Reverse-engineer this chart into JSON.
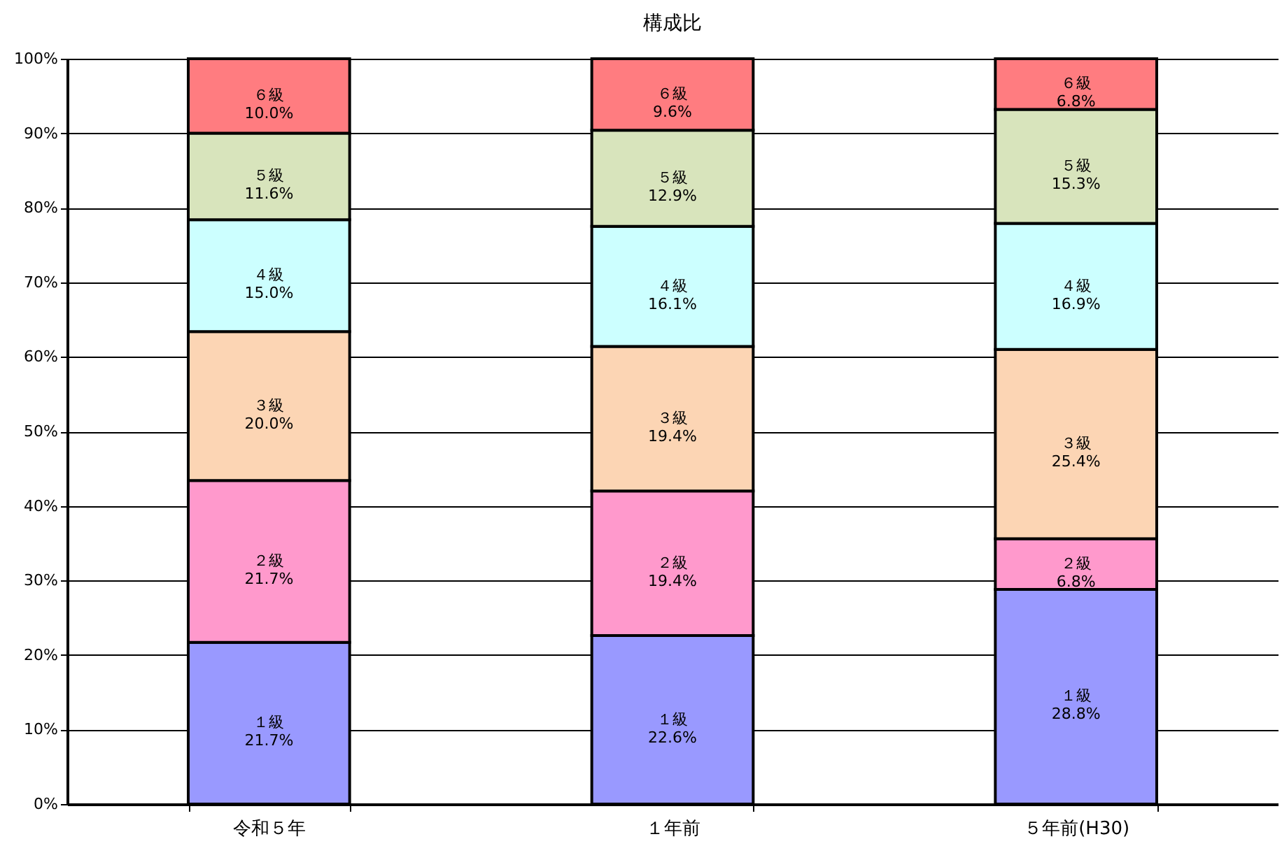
{
  "chart_data": {
    "type": "bar",
    "title": "構成比",
    "stacked": true,
    "categories": [
      "令和５年",
      "１年前",
      "５年前(H30)"
    ],
    "series": [
      {
        "name": "１級",
        "color": "#9999ff",
        "values": [
          21.7,
          22.6,
          28.8
        ],
        "value_labels": [
          "21.7%",
          "22.6%",
          "28.8%"
        ]
      },
      {
        "name": "２級",
        "color": "#ff99cc",
        "values": [
          21.7,
          19.4,
          6.8
        ],
        "value_labels": [
          "21.7%",
          "19.4%",
          "6.8%"
        ]
      },
      {
        "name": "３級",
        "color": "#fcd5b4",
        "values": [
          20.0,
          19.4,
          25.4
        ],
        "value_labels": [
          "20.0%",
          "19.4%",
          "25.4%"
        ]
      },
      {
        "name": "４級",
        "color": "#ccffff",
        "values": [
          15.0,
          16.1,
          16.9
        ],
        "value_labels": [
          "15.0%",
          "16.1%",
          "16.9%"
        ]
      },
      {
        "name": "５級",
        "color": "#d8e4bc",
        "values": [
          11.6,
          12.9,
          15.3
        ],
        "value_labels": [
          "11.6%",
          "12.9%",
          "15.3%"
        ]
      },
      {
        "name": "６級",
        "color": "#ff7c80",
        "values": [
          10.0,
          9.6,
          6.8
        ],
        "value_labels": [
          "10.0%",
          "9.6%",
          "6.8%"
        ]
      }
    ],
    "ylim": [
      0,
      100
    ],
    "yticks": [
      {
        "value": 0,
        "label": "0%"
      },
      {
        "value": 10,
        "label": "10%"
      },
      {
        "value": 20,
        "label": "20%"
      },
      {
        "value": 30,
        "label": "30%"
      },
      {
        "value": 40,
        "label": "40%"
      },
      {
        "value": 50,
        "label": "50%"
      },
      {
        "value": 60,
        "label": "60%"
      },
      {
        "value": 70,
        "label": "70%"
      },
      {
        "value": 80,
        "label": "80%"
      },
      {
        "value": 90,
        "label": "90%"
      },
      {
        "value": 100,
        "label": "100%"
      }
    ],
    "grid": "y",
    "legend": false
  }
}
